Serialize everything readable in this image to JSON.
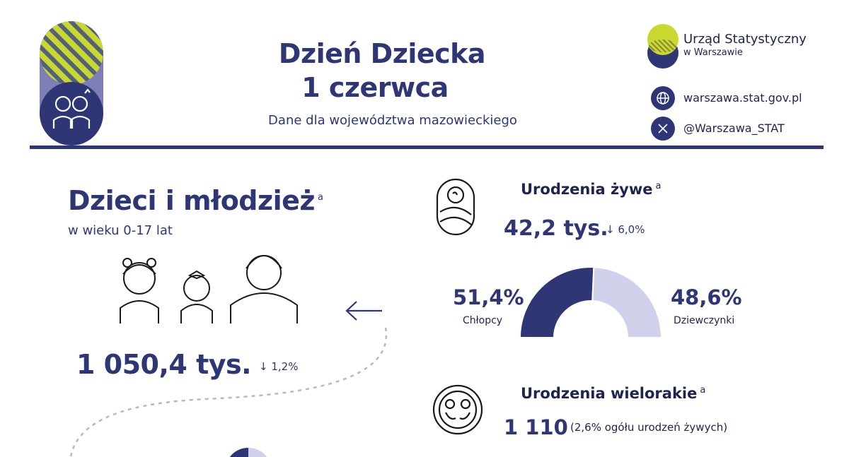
{
  "header": {
    "title_line1": "Dzień Dziecka",
    "title_line2": "1 czerwca",
    "subtitle": "Dane dla województwa mazowieckiego"
  },
  "brand": {
    "name_line1": "Urząd Statystyczny",
    "name_line2": "w Warszawie",
    "website": "warszawa.stat.gov.pl",
    "social": "@Warszawa_STAT"
  },
  "children": {
    "title": "Dzieci i młodzież",
    "footnote": "a",
    "subtitle": "w wieku 0-17 lat",
    "value": "1 050,4 tys.",
    "change": "1,2%"
  },
  "births": {
    "title": "Urodzenia żywe",
    "footnote": "a",
    "value": "42,2 tys.",
    "change": "6,0%",
    "boys_pct": "51,4%",
    "boys_label": "Chłopcy",
    "girls_pct": "48,6%",
    "girls_label": "Dziewczynki"
  },
  "multiple": {
    "title": "Urodzenia wielorakie",
    "footnote": "a",
    "value": "1 110",
    "note": "(2,6% ogółu urodzeń żywych)"
  },
  "chart_data": {
    "type": "pie",
    "categories": [
      "Chłopcy",
      "Dziewczynki"
    ],
    "values": [
      51.4,
      48.6
    ],
    "colors": [
      "#2e3676",
      "#cfd2ea"
    ]
  },
  "icons": [
    "logo-badge-icon",
    "family-icon",
    "globe-icon",
    "x-icon",
    "baby-icon",
    "twins-icon",
    "children-icon",
    "arrow-left-icon",
    "down-arrow-icon"
  ]
}
